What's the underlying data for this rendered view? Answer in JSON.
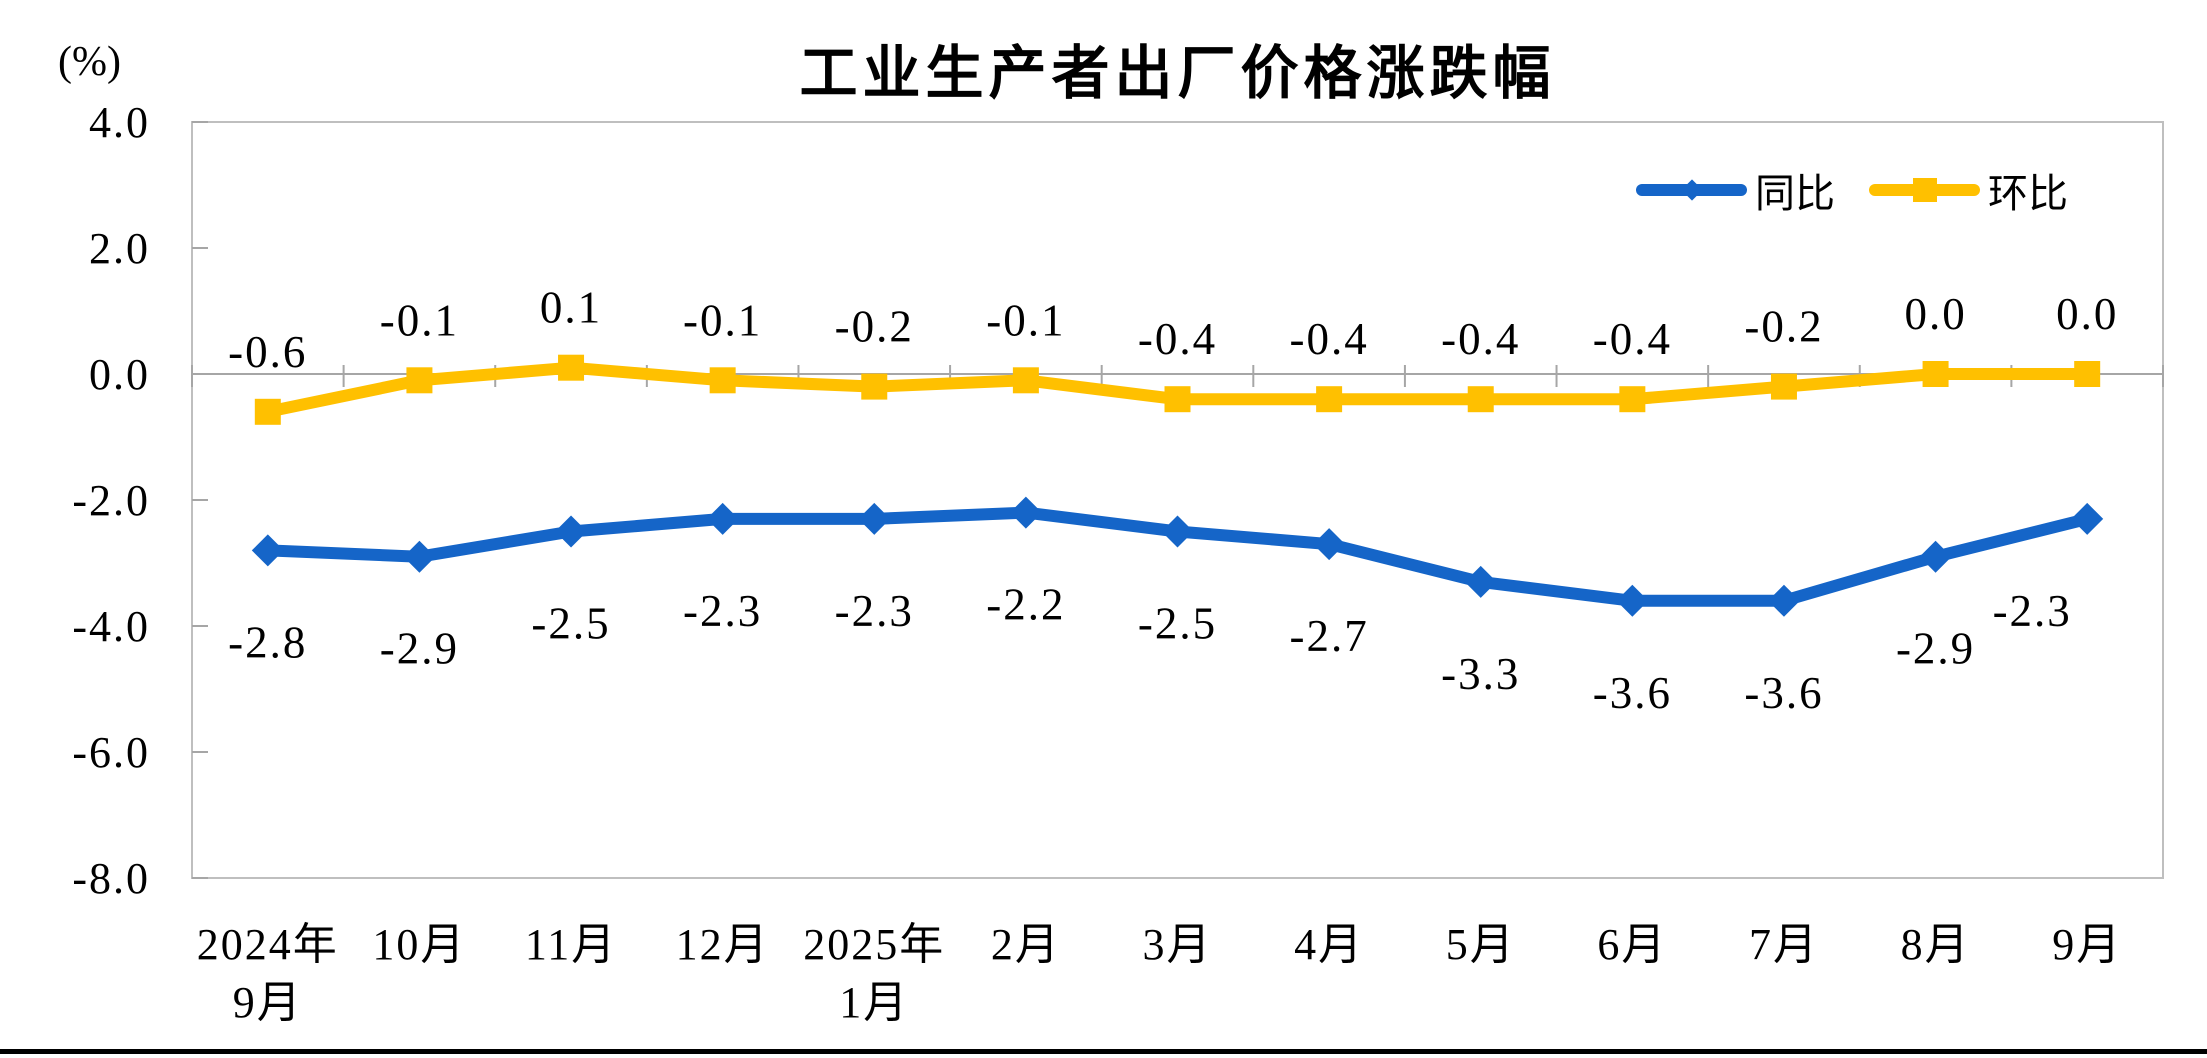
{
  "title": "工业生产者出厂价格涨跌幅",
  "unit_label": "(%)",
  "footer_bar_color": "#000000",
  "colors": {
    "yoy_blue": "#1565C8",
    "mom_gold": "#FFC000",
    "plot_border": "#BFBFBF",
    "axis_gray": "#A6A6A6",
    "text": "#000000"
  },
  "chart_data": {
    "type": "line",
    "title": "工业生产者出厂价格涨跌幅",
    "unit_label": "(%)",
    "grid": false,
    "legend_position": "top-right-inside",
    "ylim": [
      -8.0,
      4.0
    ],
    "y_ticks": [
      "4.0",
      "2.0",
      "0.0",
      "-2.0",
      "-4.0",
      "-6.0",
      "-8.0"
    ],
    "y_tick_values": [
      4.0,
      2.0,
      0.0,
      -2.0,
      -4.0,
      -6.0,
      -8.0
    ],
    "categories": [
      [
        "2024年",
        "9月"
      ],
      [
        "10月"
      ],
      [
        "11月"
      ],
      [
        "12月"
      ],
      [
        "2025年",
        "1月"
      ],
      [
        "2月"
      ],
      [
        "3月"
      ],
      [
        "4月"
      ],
      [
        "5月"
      ],
      [
        "6月"
      ],
      [
        "7月"
      ],
      [
        "8月"
      ],
      [
        "9月"
      ]
    ],
    "series": [
      {
        "key": "yoy",
        "name": "同比",
        "color": "#1565C8",
        "marker": "diamond",
        "label_side": "below",
        "values": [
          -2.8,
          -2.9,
          -2.5,
          -2.3,
          -2.3,
          -2.2,
          -2.5,
          -2.7,
          -3.3,
          -3.6,
          -3.6,
          -2.9,
          -2.3
        ],
        "labels": [
          "-2.8",
          "-2.9",
          "-2.5",
          "-2.3",
          "-2.3",
          "-2.2",
          "-2.5",
          "-2.7",
          "-3.3",
          "-3.6",
          "-3.6",
          "-2.9",
          "-2.3"
        ]
      },
      {
        "key": "mom",
        "name": "环比",
        "color": "#FFC000",
        "marker": "square",
        "label_side": "above",
        "values": [
          -0.6,
          -0.1,
          0.1,
          -0.1,
          -0.2,
          -0.1,
          -0.4,
          -0.4,
          -0.4,
          -0.4,
          -0.2,
          0.0,
          0.0
        ],
        "labels": [
          "-0.6",
          "-0.1",
          "0.1",
          "-0.1",
          "-0.2",
          "-0.1",
          "-0.4",
          "-0.4",
          "-0.4",
          "-0.4",
          "-0.2",
          "0.0",
          "0.0"
        ]
      }
    ]
  }
}
